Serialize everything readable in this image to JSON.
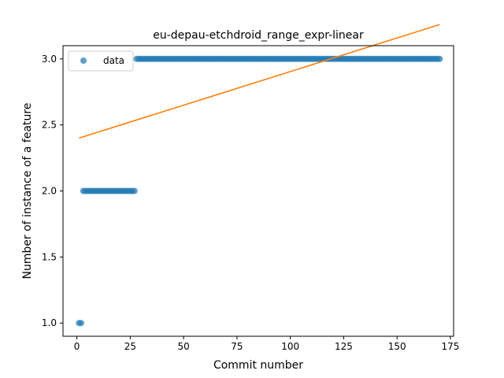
{
  "chart_data": {
    "type": "scatter",
    "title": "eu-depau-etchdroid_range_expr-linear",
    "xlabel": "Commit number",
    "ylabel": "Number of instance of a feature",
    "xlim": [
      -6.5,
      176.5
    ],
    "ylim": [
      0.9,
      3.1
    ],
    "xticks": [
      0,
      25,
      50,
      75,
      100,
      125,
      150,
      175
    ],
    "xtick_labels": [
      "0",
      "25",
      "50",
      "75",
      "100",
      "125",
      "150",
      "175"
    ],
    "yticks": [
      1.0,
      1.5,
      2.0,
      2.5,
      3.0
    ],
    "ytick_labels": [
      "1.0",
      "1.5",
      "2.0",
      "2.5",
      "3.0"
    ],
    "legend": {
      "position": "top-left",
      "entries": [
        "data"
      ]
    },
    "grid": false,
    "colors": {
      "data": "#1f77b4",
      "fit": "#ff7f0e"
    },
    "series": [
      {
        "name": "data",
        "kind": "scatter",
        "segments": [
          {
            "x_start": 1,
            "x_end": 2,
            "y": 1
          },
          {
            "x_start": 3,
            "x_end": 27,
            "y": 2
          },
          {
            "x_start": 28,
            "x_end": 170,
            "y": 3
          }
        ]
      },
      {
        "kind": "line",
        "x": [
          1,
          170
        ],
        "y": [
          2.4,
          3.26
        ]
      }
    ]
  }
}
